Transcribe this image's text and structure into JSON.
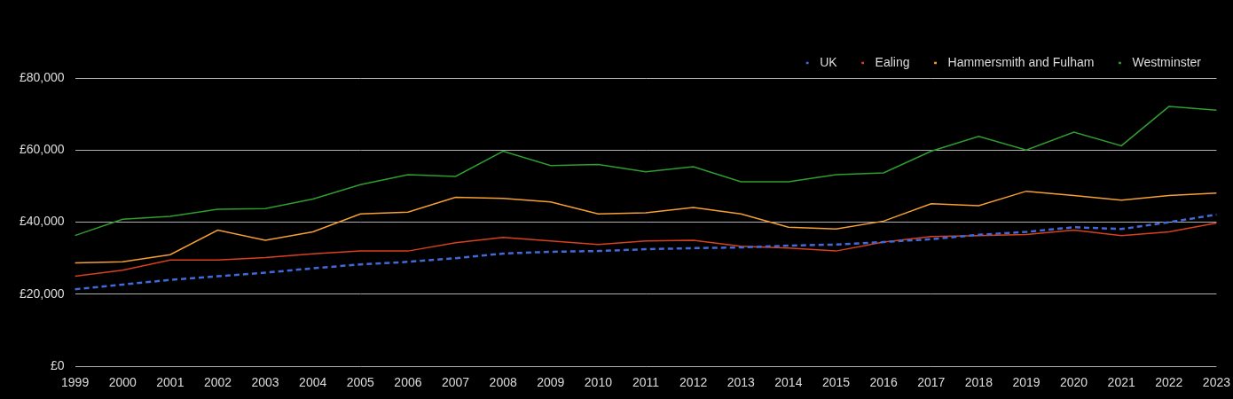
{
  "chart_data": {
    "type": "line",
    "categories": [
      1999,
      2000,
      2001,
      2002,
      2003,
      2004,
      2005,
      2006,
      2007,
      2008,
      2009,
      2010,
      2011,
      2012,
      2013,
      2014,
      2015,
      2016,
      2017,
      2018,
      2019,
      2020,
      2021,
      2022,
      2023
    ],
    "series": [
      {
        "name": "UK",
        "color": "#4169d9",
        "line_style": "dashed",
        "values": [
          21400,
          22700,
          24000,
          25000,
          26000,
          27200,
          28300,
          29000,
          30000,
          31300,
          31800,
          32000,
          32500,
          32800,
          33000,
          33500,
          33800,
          34500,
          35300,
          36500,
          37300,
          38600,
          38100,
          40000,
          42100
        ]
      },
      {
        "name": "Ealing",
        "color": "#d9401e",
        "line_style": "solid",
        "values": [
          25000,
          26700,
          29500,
          29500,
          30200,
          31200,
          32000,
          32000,
          34300,
          35800,
          34800,
          33800,
          34800,
          35000,
          33300,
          32800,
          32000,
          34500,
          36000,
          36300,
          36600,
          37800,
          36300,
          37300,
          39800
        ]
      },
      {
        "name": "Hammersmith and Fulham",
        "color": "#f5a030",
        "line_style": "solid",
        "values": [
          28700,
          29000,
          31000,
          37800,
          35000,
          37300,
          42300,
          42800,
          46900,
          46600,
          45600,
          42300,
          42600,
          44100,
          42300,
          38600,
          38100,
          40300,
          45100,
          44600,
          48600,
          47400,
          46100,
          47400,
          48100
        ]
      },
      {
        "name": "Westminster",
        "color": "#2e9e2e",
        "line_style": "solid",
        "values": [
          36300,
          40800,
          41600,
          43600,
          43800,
          46400,
          50400,
          53200,
          52700,
          59700,
          55700,
          56000,
          54000,
          55400,
          51200,
          51200,
          53200,
          53700,
          59700,
          63800,
          60000,
          65000,
          61200,
          72100,
          71100
        ]
      }
    ],
    "ylim": [
      0,
      80000
    ],
    "yticks": [
      {
        "value": 0,
        "label": "£0"
      },
      {
        "value": 20000,
        "label": "£20,000"
      },
      {
        "value": 40000,
        "label": "£40,000"
      },
      {
        "value": 60000,
        "label": "£60,000"
      },
      {
        "value": 80000,
        "label": "£80,000"
      }
    ],
    "grid": true,
    "legend": "top-right",
    "marker": "none"
  }
}
